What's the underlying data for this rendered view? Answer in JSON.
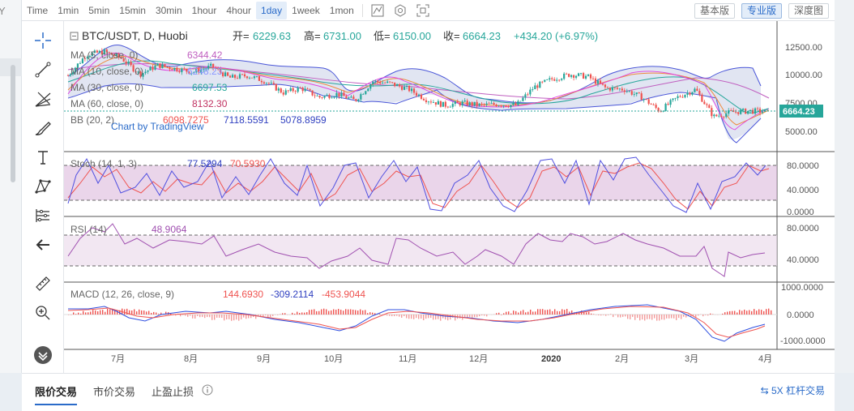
{
  "colors": {
    "up": "#26a69a",
    "down": "#ef5350",
    "accent": "#2a6bc9"
  },
  "left_strip": {
    "text": "Y"
  },
  "topbar": {
    "timeframes": [
      "Time",
      "1min",
      "5min",
      "15min",
      "30min",
      "1hour",
      "4hour",
      "1day",
      "1week",
      "1mon"
    ],
    "active_timeframe": "1day",
    "icons": [
      "indicator-icon",
      "settings-icon",
      "fullscreen-icon"
    ],
    "views": [
      "基本版",
      "专业版",
      "深度图"
    ],
    "active_view": "专业版"
  },
  "toolbar": {
    "icons": [
      "crosshair-icon",
      "trendline-icon",
      "fib-fan-icon",
      "brush-icon",
      "text-icon",
      "pattern-icon",
      "measure-ruler-icon",
      "back-arrow-icon",
      "ruler-icon",
      "zoom-in-icon",
      "scroll-down-icon"
    ]
  },
  "legend": {
    "symbol": "BTC/USDT, D, Huobi",
    "open_label": "开=",
    "open": "6229.63",
    "high_label": "高=",
    "high": "6731.00",
    "low_label": "低=",
    "low": "6150.00",
    "close_label": "收=",
    "close": "6664.23",
    "change": "+434.20 (+6.97%)",
    "ma5_label": "MA (5, close, 0)",
    "ma5": "6344.42",
    "ma10_label": "MA (10, close, 0)",
    "ma10": "6248.23",
    "ma30_label": "MA (30, close, 0)",
    "ma30": "6697.53",
    "ma60_label": "MA (60, close, 0)",
    "ma60": "8132.30",
    "bb_label": "BB (20, 2)",
    "bb_basis": "6098.7275",
    "bb_upper": "7118.5591",
    "bb_lower": "5078.8959",
    "watermark": "Chart by TradingView"
  },
  "stoch": {
    "label": "Stoch (14, 1, 3)",
    "k": "77.5294",
    "d": "70.5930"
  },
  "rsi": {
    "label": "RSI (14)",
    "value": "48.9064"
  },
  "macd": {
    "label": "MACD (12, 26, close, 9)",
    "hist": "144.6930",
    "macd": "-309.2114",
    "signal": "-453.9044"
  },
  "price_axis": {
    "ticks": [
      "12500.00",
      "10000.00",
      "7500.00",
      "5000.00"
    ],
    "last_price": "6664.23"
  },
  "stoch_axis": {
    "ticks": [
      "80.0000",
      "40.0000",
      "0.0000"
    ]
  },
  "rsi_axis": {
    "ticks": [
      "80.0000",
      "40.0000"
    ]
  },
  "macd_axis": {
    "ticks": [
      "1000.0000",
      "0.0000",
      "-1000.0000"
    ]
  },
  "time_axis": {
    "ticks": [
      "7月",
      "8月",
      "9月",
      "10月",
      "11月",
      "12月",
      "2020",
      "2月",
      "3月",
      "4月"
    ]
  },
  "footer": {
    "tabs": [
      "限价交易",
      "市价交易",
      "止盈止损"
    ],
    "active_tab": "限价交易",
    "info_icon": "info-icon",
    "leverage": "5X 杠杆交易"
  },
  "chart_data": {
    "type": "candlestick",
    "y_range": [
      3500,
      14000
    ],
    "price_series": [
      9800,
      11600,
      11900,
      11300,
      9900,
      10700,
      10400,
      10100,
      10600,
      9600,
      9800,
      9300,
      8300,
      8700,
      7900,
      8200,
      7600,
      9300,
      9100,
      8600,
      7700,
      7200,
      7400,
      7200,
      7300,
      7200,
      8800,
      9500,
      9900,
      9700,
      8700,
      8600,
      7900,
      6700,
      7900,
      8600,
      6200,
      6600,
      6700,
      6664
    ],
    "last": {
      "open": 6229.63,
      "high": 6731.0,
      "low": 6150.0,
      "close": 6664.23
    }
  }
}
